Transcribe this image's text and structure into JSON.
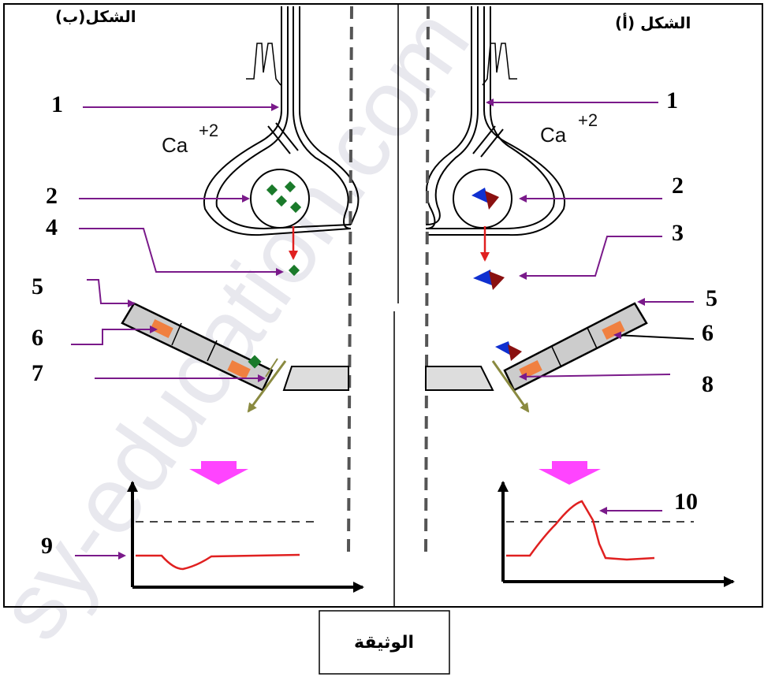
{
  "figure_b": {
    "title": "الشكل(ب)",
    "ion_label": "Ca",
    "ion_charge": "+2",
    "labels": [
      "1",
      "2",
      "4",
      "5",
      "6",
      "7",
      "9"
    ]
  },
  "figure_a": {
    "title": "الشكل (أ)",
    "ion_label": "Ca",
    "ion_charge": "+2",
    "labels": [
      "1",
      "2",
      "3",
      "5",
      "6",
      "8",
      "10"
    ]
  },
  "caption": "الوثيقة",
  "watermark": "sy-education.com",
  "colors": {
    "arrow_purple": "#7a1a8a",
    "vesicle_green": "#1a7a2a",
    "blue_molecule": "#1030d0",
    "red_molecule": "#8a1010",
    "orange_receptor": "#f08040",
    "down_arrow": "#ff44ff",
    "graph_line": "#e02020",
    "release_arrow": "#e02020",
    "ion_arrow": "#8a8a40"
  }
}
